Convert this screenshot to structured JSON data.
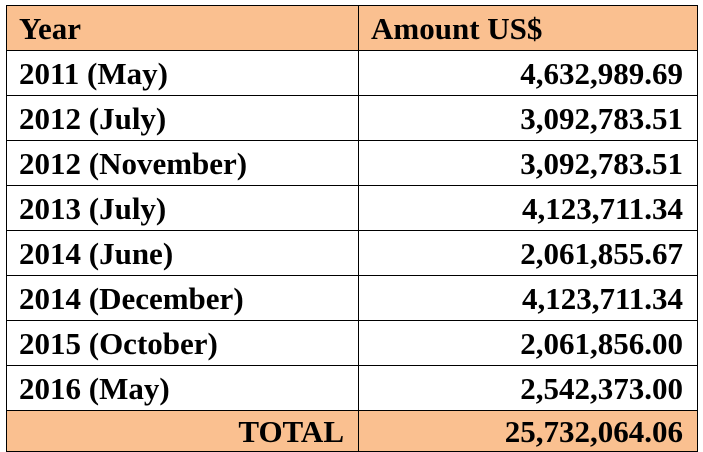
{
  "colors": {
    "header_bg": "#fac090",
    "total_bg": "#fac090",
    "body_bg": "#ffffff",
    "border": "#000000",
    "text": "#000000"
  },
  "table": {
    "headers": {
      "year": "Year",
      "amount": "Amount US$"
    },
    "rows": [
      {
        "year": "2011 (May)",
        "amount": "4,632,989.69"
      },
      {
        "year": "2012 (July)",
        "amount": "3,092,783.51"
      },
      {
        "year": "2012 (November)",
        "amount": "3,092,783.51"
      },
      {
        "year": "2013 (July)",
        "amount": "4,123,711.34"
      },
      {
        "year": "2014 (June)",
        "amount": "2,061,855.67"
      },
      {
        "year": "2014 (December)",
        "amount": "4,123,711.34"
      },
      {
        "year": "2015 (October)",
        "amount": "2,061,856.00"
      },
      {
        "year": "2016 (May)",
        "amount": "2,542,373.00"
      }
    ],
    "total": {
      "label": "TOTAL",
      "amount": "25,732,064.06"
    }
  }
}
